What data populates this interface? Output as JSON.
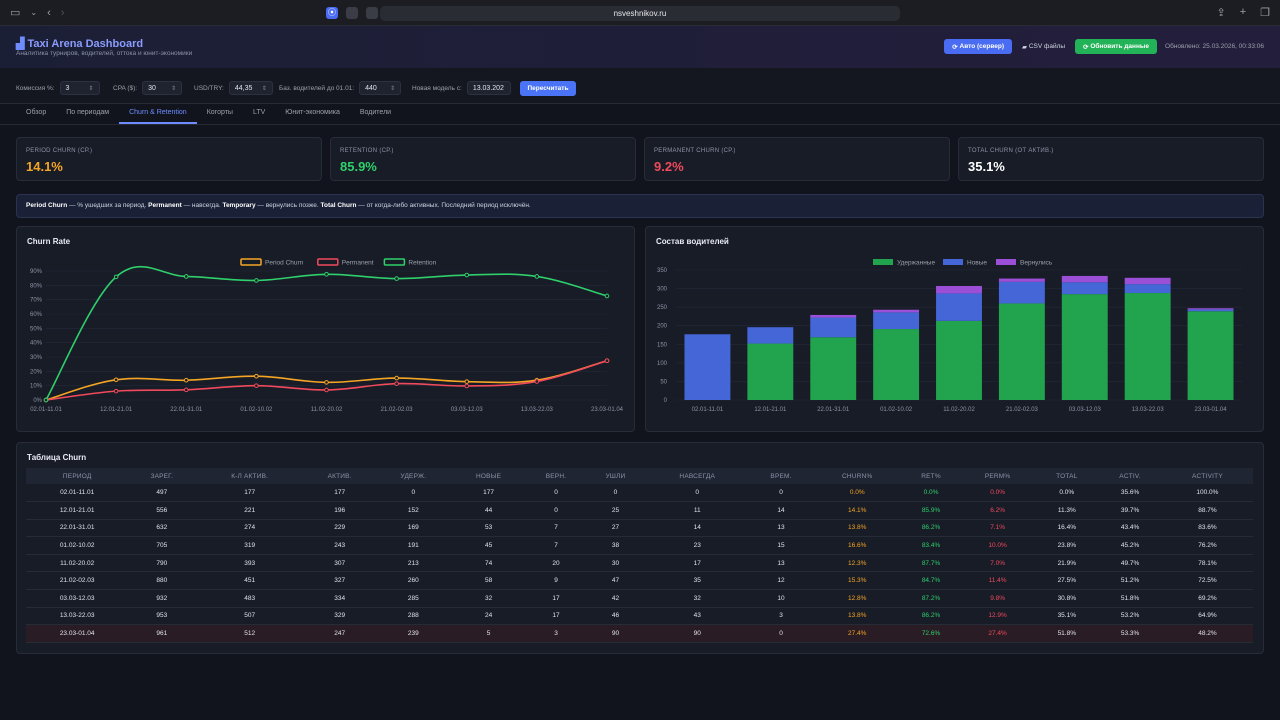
{
  "browser": {
    "url": "nsveshnikov.ru"
  },
  "header": {
    "title": "Taxi Arena Dashboard",
    "subtitle": "Аналитика турниров, водителей, оттока и юнит-экономики",
    "btn_auto": "Авто (сервер)",
    "btn_csv": "CSV файлы",
    "btn_refresh": "Обновить данные",
    "updated": "Обновлено: 25.03.2026, 00:33:06"
  },
  "params": {
    "commission_label": "Комиссия %:",
    "commission": "3",
    "cpa_label": "CPA ($):",
    "cpa": "30",
    "usd_label": "USD/TRY:",
    "usd": "44,35",
    "base_label": "Баз. водителей до 01.01:",
    "base": "440",
    "model_label": "Новая модель с:",
    "model": "13.03.202",
    "recalc": "Пересчитать"
  },
  "tabs": [
    "Обзор",
    "По периодам",
    "Churn & Retention",
    "Когорты",
    "LTV",
    "Юнит-экономика",
    "Водители"
  ],
  "kpis": [
    {
      "label": "PERIOD CHURN (СР.)",
      "value": "14.1%",
      "color": "#f5a524"
    },
    {
      "label": "RETENTION (СР.)",
      "value": "85.9%",
      "color": "#2fd06b"
    },
    {
      "label": "PERMANENT CHURN (СР.)",
      "value": "9.2%",
      "color": "#f04a5c"
    },
    {
      "label": "TOTAL CHURN (ОТ АКТИВ.)",
      "value": "35.1%",
      "color": "#ffffff"
    }
  ],
  "info": {
    "t1": "Period Churn",
    "t2": " — % ушедших за период. ",
    "t3": "Permanent",
    "t4": " — навсегда. ",
    "t5": "Temporary",
    "t6": " — вернулись позже. ",
    "t7": "Total Churn",
    "t8": " — от когда-либо активных. Последний период исключён."
  },
  "chart_data": [
    {
      "type": "line",
      "title": "Churn Rate",
      "categories": [
        "02.01-11.01",
        "12.01-21.01",
        "22.01-31.01",
        "01.02-10.02",
        "11.02-20.02",
        "21.02-02.03",
        "03.03-12.03",
        "13.03-22.03",
        "23.03-01.04"
      ],
      "yticks": [
        "0%",
        "10%",
        "20%",
        "30%",
        "40%",
        "50%",
        "60%",
        "70%",
        "80%",
        "90%"
      ],
      "ylim": [
        0,
        90
      ],
      "series": [
        {
          "name": "Period Churn",
          "color": "#f5a524",
          "values": [
            0,
            14.1,
            13.8,
            16.6,
            12.3,
            15.3,
            12.8,
            13.8,
            27.4
          ]
        },
        {
          "name": "Permanent",
          "color": "#f04a5c",
          "values": [
            0,
            6.2,
            7.1,
            10.0,
            7.0,
            11.4,
            9.8,
            12.9,
            27.4
          ]
        },
        {
          "name": "Retention",
          "color": "#2fd06b",
          "values": [
            0,
            85.9,
            86.2,
            83.4,
            87.7,
            84.7,
            87.2,
            86.2,
            72.6
          ]
        }
      ]
    },
    {
      "type": "bar",
      "title": "Состав водителей",
      "stacked": true,
      "categories": [
        "02.01-11.01",
        "12.01-21.01",
        "22.01-31.01",
        "01.02-10.02",
        "11.02-20.02",
        "21.02-02.03",
        "03.03-12.03",
        "13.03-22.03",
        "23.03-01.04"
      ],
      "yticks": [
        "0",
        "50",
        "100",
        "150",
        "200",
        "250",
        "300",
        "350"
      ],
      "ylim": [
        0,
        350
      ],
      "series": [
        {
          "name": "Удержанные",
          "color": "#22a34d",
          "values": [
            0,
            152,
            169,
            191,
            213,
            260,
            285,
            288,
            239
          ]
        },
        {
          "name": "Новые",
          "color": "#4566d6",
          "values": [
            177,
            44,
            53,
            45,
            74,
            58,
            32,
            24,
            5
          ]
        },
        {
          "name": "Вернулись",
          "color": "#9b4fd6",
          "values": [
            0,
            0,
            7,
            7,
            20,
            9,
            17,
            17,
            3
          ]
        }
      ]
    }
  ],
  "table": {
    "title": "Таблица Churn",
    "headers": [
      "ПЕРИОД",
      "ЗАРЕГ.",
      "К-Л АКТИВ.",
      "АКТИВ.",
      "УДЕРЖ.",
      "НОВЫЕ",
      "ВЕРН.",
      "УШЛИ",
      "НАВСЕГДА",
      "ВРЕМ.",
      "CHURN%",
      "RET%",
      "PERM%",
      "TOTAL",
      "ACTIV.",
      "ACTIVITY"
    ],
    "rows": [
      [
        "02.01-11.01",
        "497",
        "177",
        "177",
        "0",
        "177",
        "0",
        "0",
        "0",
        "0",
        "0.0%",
        "0.0%",
        "0.0%",
        "0.0%",
        "35.6%",
        "100.0%"
      ],
      [
        "12.01-21.01",
        "556",
        "221",
        "196",
        "152",
        "44",
        "0",
        "25",
        "11",
        "14",
        "14.1%",
        "85.9%",
        "6.2%",
        "11.3%",
        "39.7%",
        "88.7%"
      ],
      [
        "22.01-31.01",
        "632",
        "274",
        "229",
        "169",
        "53",
        "7",
        "27",
        "14",
        "13",
        "13.8%",
        "86.2%",
        "7.1%",
        "16.4%",
        "43.4%",
        "83.6%"
      ],
      [
        "01.02-10.02",
        "705",
        "319",
        "243",
        "191",
        "45",
        "7",
        "38",
        "23",
        "15",
        "16.6%",
        "83.4%",
        "10.0%",
        "23.8%",
        "45.2%",
        "76.2%"
      ],
      [
        "11.02-20.02",
        "790",
        "393",
        "307",
        "213",
        "74",
        "20",
        "30",
        "17",
        "13",
        "12.3%",
        "87.7%",
        "7.0%",
        "21.9%",
        "49.7%",
        "78.1%"
      ],
      [
        "21.02-02.03",
        "880",
        "451",
        "327",
        "260",
        "58",
        "9",
        "47",
        "35",
        "12",
        "15.3%",
        "84.7%",
        "11.4%",
        "27.5%",
        "51.2%",
        "72.5%"
      ],
      [
        "03.03-12.03",
        "932",
        "483",
        "334",
        "285",
        "32",
        "17",
        "42",
        "32",
        "10",
        "12.8%",
        "87.2%",
        "9.8%",
        "30.8%",
        "51.8%",
        "69.2%"
      ],
      [
        "13.03-22.03",
        "953",
        "507",
        "329",
        "288",
        "24",
        "17",
        "46",
        "43",
        "3",
        "13.8%",
        "86.2%",
        "12.9%",
        "35.1%",
        "53.2%",
        "64.9%"
      ],
      [
        "23.03-01.04",
        "961",
        "512",
        "247",
        "239",
        "5",
        "3",
        "90",
        "90",
        "0",
        "27.4%",
        "72.6%",
        "27.4%",
        "51.8%",
        "53.3%",
        "48.2%"
      ]
    ]
  }
}
